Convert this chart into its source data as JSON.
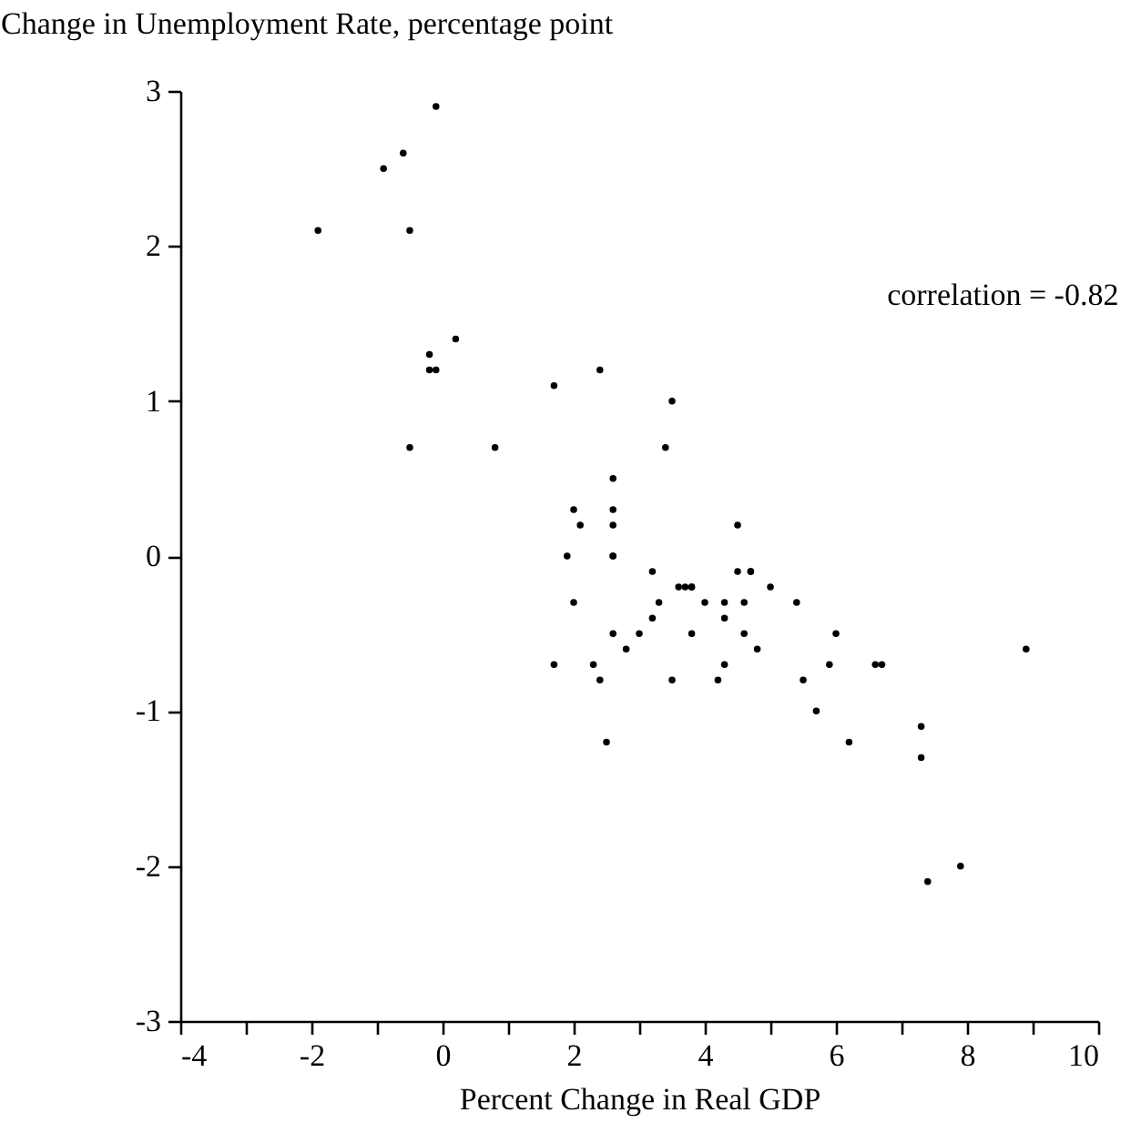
{
  "chart_data": {
    "type": "scatter",
    "xlabel": "Percent Change in Real GDP",
    "ylabel": "Change in Unemployment Rate, percentage point",
    "annotations": [
      "correlation = -0.82"
    ],
    "xlim": [
      -4,
      10
    ],
    "xticks": [
      -4,
      {
        "value": -3,
        "label": null
      },
      -2,
      {
        "value": -1,
        "label": null
      },
      0,
      {
        "value": 1,
        "label": null
      },
      2,
      {
        "value": 3,
        "label": null
      },
      4,
      {
        "value": 5,
        "label": null
      },
      6,
      {
        "value": 7,
        "label": null
      },
      8,
      {
        "value": 9,
        "label": null
      },
      10
    ],
    "ylim": [
      -3,
      3
    ],
    "yticks": [
      -3,
      -2,
      -1,
      0,
      1,
      2,
      3
    ],
    "grid": false,
    "marker": "circle",
    "series": [
      {
        "color": "#000000",
        "x": [
          -0.1,
          -0.6,
          -0.9,
          -1.9,
          -0.5,
          0.2,
          -0.2,
          -0.2,
          -0.1,
          -0.5,
          0.8,
          1.7,
          2.4,
          3.5,
          3.4,
          2.6,
          2.0,
          2.6,
          2.1,
          2.6,
          4.5,
          1.9,
          2.6,
          2.6,
          3.2,
          4.5,
          4.7,
          4.7,
          3.6,
          3.7,
          3.8,
          3.8,
          5.0,
          2.0,
          3.3,
          4.0,
          4.3,
          4.6,
          5.4,
          3.2,
          4.3,
          2.6,
          3.0,
          3.8,
          4.6,
          6.0,
          2.8,
          4.8,
          8.9,
          1.7,
          2.3,
          4.3,
          5.9,
          6.6,
          6.7,
          2.4,
          3.5,
          4.2,
          5.5,
          5.7,
          7.3,
          2.5,
          6.2,
          7.3,
          7.9,
          7.4
        ],
        "values": [
          2.9,
          2.6,
          2.5,
          2.1,
          2.1,
          1.4,
          1.3,
          1.2,
          1.2,
          0.7,
          0.7,
          1.1,
          1.2,
          1.0,
          0.7,
          0.5,
          0.3,
          0.3,
          0.2,
          0.2,
          0.2,
          0.0,
          0.0,
          0.0,
          -0.1,
          -0.1,
          -0.1,
          -0.1,
          -0.2,
          -0.2,
          -0.2,
          -0.2,
          -0.2,
          -0.3,
          -0.3,
          -0.3,
          -0.3,
          -0.3,
          -0.3,
          -0.4,
          -0.4,
          -0.5,
          -0.5,
          -0.5,
          -0.5,
          -0.5,
          -0.6,
          -0.6,
          -0.6,
          -0.7,
          -0.7,
          -0.7,
          -0.7,
          -0.7,
          -0.7,
          -0.8,
          -0.8,
          -0.8,
          -0.8,
          -1.0,
          -1.1,
          -1.2,
          -1.2,
          -1.3,
          -2.0,
          -2.1
        ]
      }
    ]
  }
}
